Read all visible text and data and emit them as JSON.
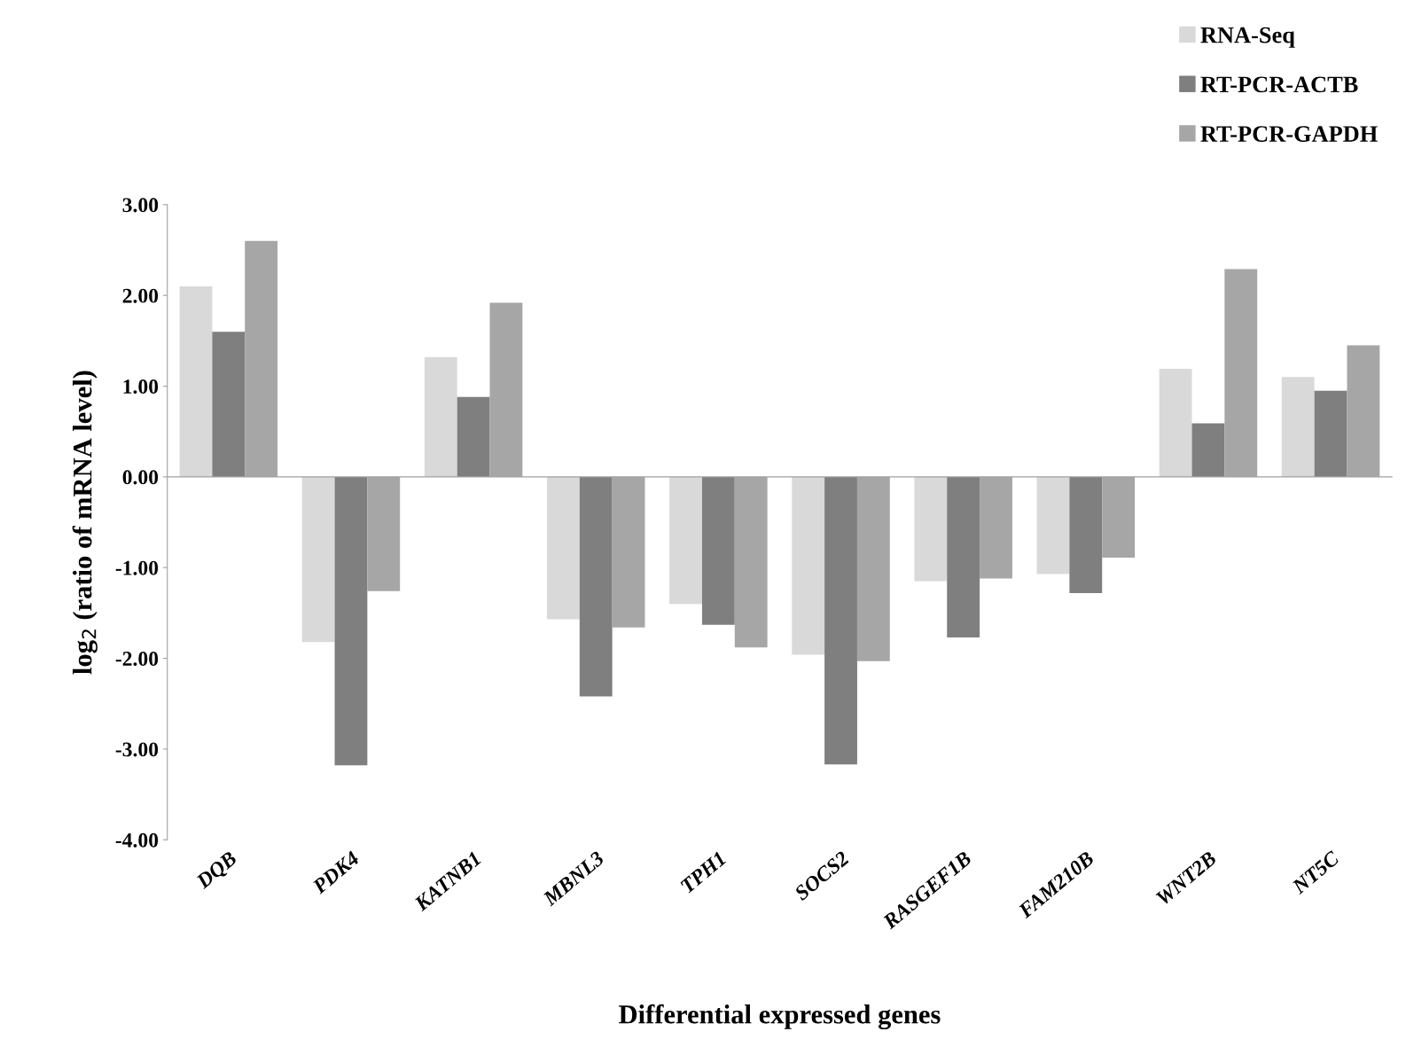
{
  "chart_data": {
    "type": "bar",
    "xlabel": "Differential expressed genes",
    "ylabel": "log$_{2}$ (ratio of mRNA level)",
    "categories": [
      "DQB",
      "PDK4",
      "KATNB1",
      "MBNL3",
      "TPH1",
      "SOCS2",
      "RASGEF1B",
      "FAM210B",
      "WNT2B",
      "NT5C"
    ],
    "series": [
      {
        "name": "RNA-Seq",
        "color": "#d9d9d9",
        "values": [
          2.1,
          -1.82,
          1.32,
          -1.57,
          -1.4,
          -1.96,
          -1.15,
          -1.07,
          1.19,
          1.1
        ]
      },
      {
        "name": "RT-PCR-ACTB",
        "color": "#7f7f7f",
        "values": [
          1.6,
          -3.18,
          0.88,
          -2.42,
          -1.63,
          -3.17,
          -1.77,
          -1.28,
          0.59,
          0.95
        ]
      },
      {
        "name": "RT-PCR-GAPDH",
        "color": "#a6a6a6",
        "values": [
          2.6,
          -1.26,
          1.92,
          -1.66,
          -1.88,
          -2.03,
          -1.12,
          -0.89,
          2.29,
          1.45
        ]
      }
    ],
    "ylim": [
      -4,
      3
    ],
    "yticks": [
      {
        "value": -4,
        "label": "-4.00"
      },
      {
        "value": -3,
        "label": "-3.00"
      },
      {
        "value": -2,
        "label": "-2.00"
      },
      {
        "value": -1,
        "label": "-1.00"
      },
      {
        "value": 0,
        "label": "0.00"
      },
      {
        "value": 1,
        "label": "1.00"
      },
      {
        "value": 2,
        "label": "2.00"
      },
      {
        "value": 3,
        "label": "3.00"
      }
    ],
    "legend": "top right"
  }
}
